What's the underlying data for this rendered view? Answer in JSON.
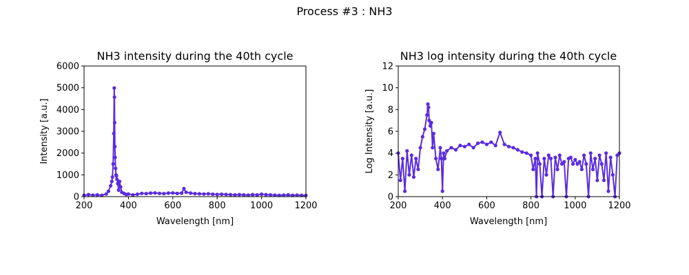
{
  "suptitle": "Process #3 : NH3",
  "series_color": "#5b2be0",
  "chart_data": [
    {
      "type": "line",
      "title": "NH3 intensity during the 40th cycle",
      "xlabel": "Wavelength [nm]",
      "ylabel": "Intensity [a.u.]",
      "xlim": [
        200,
        1200
      ],
      "ylim": [
        0,
        6000
      ],
      "xticks": [
        "200",
        "400",
        "600",
        "800",
        "1000",
        "1200"
      ],
      "yticks": [
        "0",
        "1000",
        "2000",
        "3000",
        "4000",
        "5000",
        "6000"
      ],
      "markers": true,
      "grid": false,
      "series": [
        {
          "x": [
            200,
            220,
            240,
            260,
            280,
            300,
            310,
            320,
            325,
            328,
            331,
            334,
            336,
            337,
            338,
            339,
            340,
            342,
            344,
            346,
            348,
            352,
            356,
            360,
            365,
            370,
            380,
            390,
            400,
            420,
            440,
            460,
            480,
            500,
            520,
            540,
            560,
            580,
            600,
            620,
            640,
            650,
            660,
            680,
            700,
            720,
            740,
            760,
            780,
            800,
            820,
            840,
            860,
            880,
            900,
            920,
            940,
            960,
            980,
            1000,
            1020,
            1040,
            1060,
            1080,
            1100,
            1120,
            1140,
            1160,
            1180,
            1200
          ],
          "y": [
            60,
            90,
            70,
            80,
            60,
            120,
            250,
            500,
            700,
            900,
            1500,
            2900,
            4990,
            4570,
            3400,
            2300,
            1800,
            1300,
            1000,
            950,
            800,
            600,
            300,
            700,
            450,
            200,
            150,
            100,
            120,
            80,
            110,
            150,
            140,
            160,
            170,
            150,
            140,
            160,
            170,
            150,
            160,
            370,
            200,
            160,
            140,
            130,
            120,
            130,
            110,
            100,
            110,
            100,
            90,
            80,
            90,
            80,
            70,
            90,
            80,
            110,
            90,
            80,
            70,
            60,
            70,
            80,
            60,
            70,
            60,
            50
          ]
        }
      ]
    },
    {
      "type": "line",
      "title": "NH3 log intensity during the 40th cycle",
      "xlabel": "Wavelength [nm]",
      "ylabel": "Log Intensity [a.u.]",
      "xlim": [
        200,
        1200
      ],
      "ylim": [
        0,
        12
      ],
      "xticks": [
        "200",
        "400",
        "600",
        "800",
        "1000",
        "1200"
      ],
      "yticks": [
        "0",
        "2",
        "4",
        "6",
        "8",
        "10",
        "12"
      ],
      "markers": true,
      "grid": false,
      "series": [
        {
          "x": [
            200,
            210,
            220,
            230,
            240,
            250,
            260,
            270,
            280,
            290,
            300,
            310,
            320,
            330,
            334,
            337,
            340,
            345,
            350,
            355,
            360,
            370,
            380,
            390,
            395,
            400,
            405,
            410,
            420,
            440,
            460,
            480,
            500,
            520,
            540,
            560,
            580,
            600,
            620,
            640,
            660,
            680,
            700,
            720,
            740,
            760,
            780,
            800,
            810,
            820,
            825,
            830,
            840,
            850,
            860,
            870,
            880,
            890,
            900,
            910,
            920,
            930,
            940,
            950,
            960,
            970,
            980,
            990,
            1000,
            1010,
            1020,
            1030,
            1040,
            1050,
            1060,
            1070,
            1080,
            1090,
            1100,
            1110,
            1120,
            1130,
            1140,
            1150,
            1160,
            1170,
            1180,
            1190,
            1200
          ],
          "y": [
            4.0,
            1.5,
            3.5,
            0.5,
            4.2,
            2.0,
            3.8,
            1.8,
            3.5,
            2.5,
            4.5,
            5.5,
            6.2,
            7.5,
            8.5,
            8.2,
            7.0,
            6.5,
            6.8,
            4.5,
            5.8,
            3.5,
            2.5,
            4.5,
            3.5,
            0.5,
            4.0,
            3.5,
            4.2,
            4.5,
            4.3,
            4.7,
            4.6,
            4.8,
            4.5,
            4.9,
            5.0,
            4.8,
            5.0,
            4.7,
            5.9,
            4.8,
            4.6,
            4.5,
            4.3,
            4.1,
            4.0,
            3.8,
            2.5,
            3.5,
            0.0,
            4.0,
            3.0,
            0.0,
            3.5,
            2.0,
            3.8,
            3.5,
            0.0,
            3.6,
            2.5,
            3.8,
            3.0,
            3.2,
            0.0,
            3.5,
            3.6,
            3.0,
            3.4,
            3.0,
            3.2,
            2.5,
            3.8,
            3.0,
            0.0,
            4.0,
            2.5,
            3.5,
            1.5,
            3.8,
            3.0,
            1.5,
            4.0,
            0.5,
            3.6,
            2.0,
            0.0,
            3.8,
            4.0
          ]
        }
      ]
    }
  ]
}
